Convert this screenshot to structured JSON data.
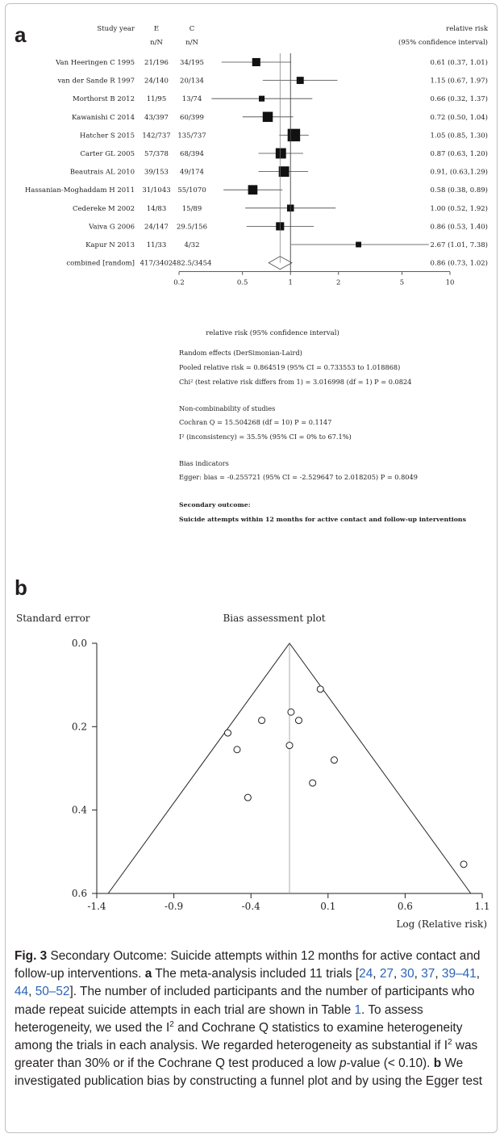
{
  "panel_a": {
    "label": "a",
    "headers": {
      "study": "Study year",
      "e": "E",
      "c": "C",
      "e_sub": "n/N",
      "c_sub": "n/N",
      "rr": "relative risk",
      "rr_sub": "(95% confidence interval)"
    },
    "x_axis_label": "relative risk (95% confidence interval)",
    "stats": [
      "Random effects (DerSimonian-Laird)",
      "Pooled relative risk = 0.864519 (95% CI = 0.733553 to 1.018868)",
      "Chi² (test relative risk differs from 1) = 3.016998  (df = 1)  P = 0.0824",
      "Non-combinability of studies",
      "Cochran Q = 15.504268  (df = 10)  P = 0.1147",
      "I² (inconsistency) = 35.5% (95% CI = 0% to 67.1%)",
      "Bias indicators",
      "Egger: bias = -0.255721 (95% CI = -2.529647 to 2.018205)  P = 0.8049",
      "Secondary outcome:",
      "Suicide attempts within 12 months for active contact and follow-up interventions"
    ]
  },
  "panel_b": {
    "label": "b",
    "y_axis_label": "Standard error",
    "title": "Bias assessment plot",
    "x_axis_label": "Log (Relative risk)"
  },
  "caption": {
    "fig": "Fig. 3",
    "title": " Secondary Outcome: Suicide attempts within 12 months for active contact and follow-up interventions. ",
    "a_label": "a",
    "a_text1": " The meta-analysis included 11 trials [",
    "refs": [
      "24",
      "27",
      "30",
      "37",
      "39–41",
      "44",
      "50–52"
    ],
    "a_text2": "]. The number of included participants and the number of participants who made repeat suicide attempts in each trial are shown in Table ",
    "table_ref": "1",
    "a_text3": ". To assess heterogeneity, we used the I",
    "sup2": "2",
    "a_text4": " and Cochrane Q statistics to examine heterogeneity among the trials in each analysis. We regarded heterogeneity as substantial if I",
    "a_text5": " was greater than 30% or if the Cochrane Q test produced a low ",
    "p_italic": "p",
    "a_text6": "-value (< 0.10). ",
    "b_label": "b",
    "b_text": " We investigated publication bias by constructing a funnel plot and by using the Egger test"
  },
  "chart_data": [
    {
      "type": "forest",
      "x_scale": "log",
      "ticks": [
        0.2,
        0.5,
        1,
        2,
        5,
        10
      ],
      "xlim": [
        0.2,
        10
      ],
      "xlabel": "relative risk (95% confidence interval)",
      "studies": [
        {
          "name": "Van Heeringen C 1995",
          "e": "21/196",
          "c": "34/195",
          "rr": 0.61,
          "lo": 0.37,
          "hi": 1.01,
          "ci_text": "0.61 (0.37, 1.01)",
          "weight": 0.55
        },
        {
          "name": "van der Sande R 1997",
          "e": "24/140",
          "c": "20/134",
          "rr": 1.15,
          "lo": 0.67,
          "hi": 1.97,
          "ci_text": "1.15 (0.67, 1.97)",
          "weight": 0.45
        },
        {
          "name": "Morthorst B 2012",
          "e": "11/95",
          "c": "13/74",
          "rr": 0.66,
          "lo": 0.32,
          "hi": 1.37,
          "ci_text": "0.66 (0.32, 1.37)",
          "weight": 0.3
        },
        {
          "name": "Kawanishi C 2014",
          "e": "43/397",
          "c": "60/399",
          "rr": 0.72,
          "lo": 0.5,
          "hi": 1.04,
          "ci_text": "0.72 (0.50, 1.04)",
          "weight": 0.75
        },
        {
          "name": "Hatcher S 2015",
          "e": "142/737",
          "c": "135/737",
          "rr": 1.05,
          "lo": 0.85,
          "hi": 1.3,
          "ci_text": "1.05 (0.85, 1.30)",
          "weight": 1.0
        },
        {
          "name": "Carter GL 2005",
          "e": "57/378",
          "c": "68/394",
          "rr": 0.87,
          "lo": 0.63,
          "hi": 1.2,
          "ci_text": "0.87 (0.63, 1.20)",
          "weight": 0.78
        },
        {
          "name": "Beautrais AL 2010",
          "e": "39/153",
          "c": "49/174",
          "rr": 0.91,
          "lo": 0.63,
          "hi": 1.29,
          "ci_text": "0.91, (0.63,1.29)",
          "weight": 0.78
        },
        {
          "name": "Hassanian-Moghaddam H 2011",
          "e": "31/1043",
          "c": "55/1070",
          "rr": 0.58,
          "lo": 0.38,
          "hi": 0.89,
          "ci_text": "0.58 (0.38, 0.89)",
          "weight": 0.68
        },
        {
          "name": "Cedereke M 2002",
          "e": "14/83",
          "c": "15/89",
          "rr": 1.0,
          "lo": 0.52,
          "hi": 1.92,
          "ci_text": "1.00 (0.52, 1.92)",
          "weight": 0.42
        },
        {
          "name": "Vaiva G 2006",
          "e": "24/147",
          "c": "29.5/156",
          "rr": 0.86,
          "lo": 0.53,
          "hi": 1.4,
          "ci_text": "0.86 (0.53, 1.40)",
          "weight": 0.55
        },
        {
          "name": "Kapur N 2013",
          "e": "11/33",
          "c": "4/32",
          "rr": 2.67,
          "lo": 1.01,
          "hi": 7.38,
          "ci_text": "2.67 (1.01, 7.38)",
          "weight": 0.28
        }
      ],
      "combined": {
        "name": "combined [random]",
        "e": "417/3402",
        "c": "482.5/3454",
        "rr": 0.86,
        "lo": 0.73,
        "hi": 1.02,
        "ci_text": "0.86 (0.73, 1.02)"
      }
    },
    {
      "type": "scatter",
      "title": "Bias assessment plot",
      "xlabel": "Log (Relative risk)",
      "ylabel": "Standard error",
      "xlim": [
        -1.4,
        1.1
      ],
      "ylim": [
        0.6,
        0.0
      ],
      "x_ticks": [
        -1.4,
        -0.9,
        -0.4,
        0.1,
        0.6,
        1.1
      ],
      "y_ticks": [
        0.0,
        0.2,
        0.4,
        0.6
      ],
      "pooled_log_rr": -0.15,
      "points": [
        {
          "x": -0.49,
          "y": 0.255
        },
        {
          "x": 0.14,
          "y": 0.28
        },
        {
          "x": -0.42,
          "y": 0.37
        },
        {
          "x": -0.33,
          "y": 0.185
        },
        {
          "x": 0.05,
          "y": 0.11
        },
        {
          "x": -0.14,
          "y": 0.165
        },
        {
          "x": -0.09,
          "y": 0.185
        },
        {
          "x": -0.55,
          "y": 0.215
        },
        {
          "x": -0.15,
          "y": 0.245
        },
        {
          "x": 0.0,
          "y": 0.335
        },
        {
          "x": 0.98,
          "y": 0.53
        }
      ]
    }
  ]
}
